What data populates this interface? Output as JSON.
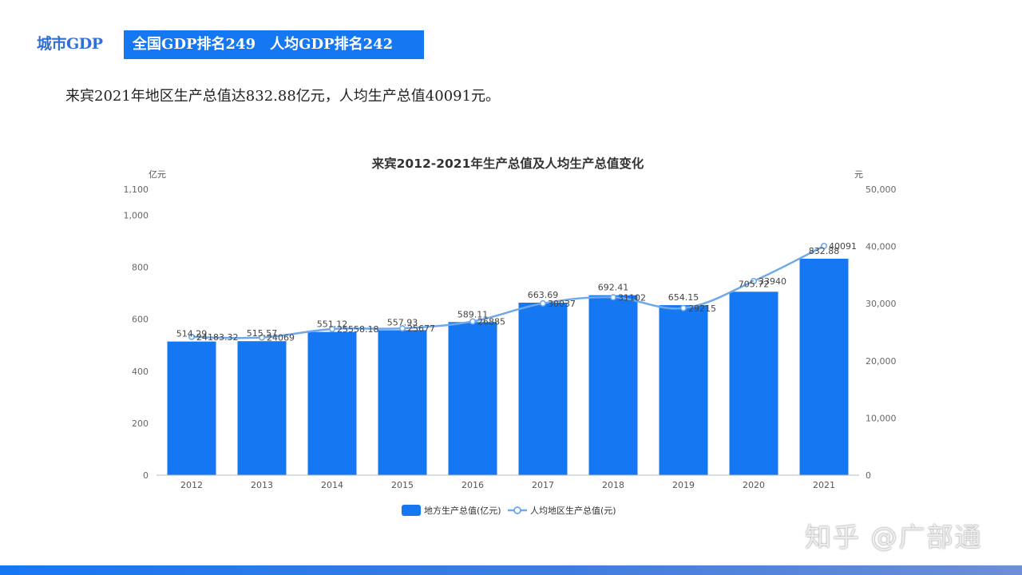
{
  "header": {
    "section_label": "城市GDP",
    "rank_badge": "全国GDP排名249　人均GDP排名242",
    "summary": "来宾2021年地区生产总值达832.88亿元，人均生产总值40091元。"
  },
  "chart_data": {
    "type": "bar",
    "title": "来宾2012-2021年生产总值及人均生产总值变化",
    "categories": [
      "2012",
      "2013",
      "2014",
      "2015",
      "2016",
      "2017",
      "2018",
      "2019",
      "2020",
      "2021"
    ],
    "series": [
      {
        "name": "地方生产总值(亿元)",
        "type": "bar",
        "axis": "left",
        "color": "#1677f2",
        "values": [
          514.29,
          515.57,
          551.12,
          557.93,
          589.11,
          663.69,
          692.41,
          654.15,
          705.72,
          832.88
        ],
        "labels": [
          "514.29",
          "515.57",
          "551.12",
          "557.93",
          "589.11",
          "663.69",
          "692.41",
          "654.15",
          "705.72",
          "832.88"
        ]
      },
      {
        "name": "人均地区生产总值(元)",
        "type": "line",
        "axis": "right",
        "color": "#6fa8ea",
        "values": [
          24183.32,
          24069,
          25558.18,
          25677,
          26885,
          30037,
          31102,
          29215,
          33940,
          40091
        ],
        "labels": [
          "24183.32",
          "24069",
          "25558.18",
          "25677",
          "26885",
          "30037",
          "31102",
          "29215",
          "33940",
          "40091"
        ]
      }
    ],
    "y_left": {
      "unit": "亿元",
      "ylim": [
        0,
        1100
      ],
      "ticks": [
        0,
        200,
        400,
        600,
        800,
        1000,
        1100
      ],
      "tick_labels": [
        "0",
        "200",
        "400",
        "600",
        "800",
        "1,000",
        "1,100"
      ]
    },
    "y_right": {
      "unit": "元",
      "ylim": [
        0,
        50000
      ],
      "ticks": [
        0,
        10000,
        20000,
        30000,
        40000,
        50000
      ],
      "tick_labels": [
        "0",
        "10,000",
        "20,000",
        "30,000",
        "40,000",
        "50,000"
      ]
    },
    "grid": false,
    "legend": "bottom-center"
  },
  "watermark": "知乎 @广部通",
  "colors": {
    "accent": "#1677f2",
    "line": "#6fa8ea",
    "text": "#222222"
  }
}
